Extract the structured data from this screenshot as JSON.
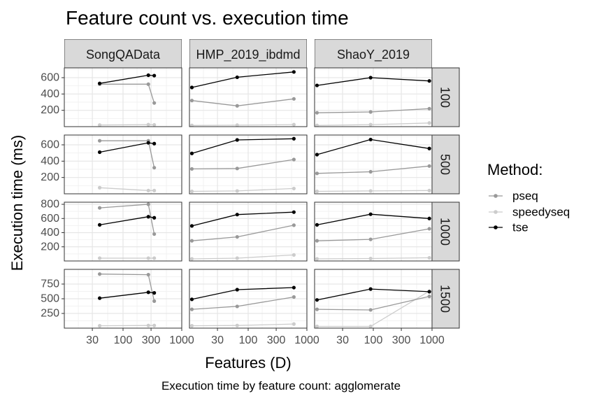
{
  "chart_data": {
    "type": "line",
    "title": "Feature count vs. execution time",
    "caption": "Execution time by feature count: agglomerate",
    "xlabel": "Features (D)",
    "ylabel": "Execution time (ms)",
    "x_scale": "log10",
    "x_ticks": [
      30,
      100,
      300,
      1000
    ],
    "x_tick_labels": [
      "30",
      "100",
      "300",
      "1000"
    ],
    "xlim": [
      10,
      1000
    ],
    "grid": true,
    "legend": {
      "title": "Method:",
      "position": "right",
      "entries": [
        "pseq",
        "speedyseq",
        "tse"
      ]
    },
    "series_colors": {
      "pseq": "#999999",
      "speedyseq": "#cccccc",
      "tse": "#000000"
    },
    "col_facets": [
      "SongQAData",
      "HMP_2019_ibdmd",
      "ShaoY_2019"
    ],
    "row_facets": [
      "100",
      "500",
      "1000",
      "1500"
    ],
    "rows": [
      {
        "facet": "100",
        "ylim": [
          0,
          720
        ],
        "y_ticks": [
          200,
          400,
          600
        ],
        "y_tick_labels": [
          "200",
          "400",
          "600"
        ],
        "panels": [
          {
            "series": [
              {
                "name": "pseq",
                "x": [
                  40,
                  270,
                  340
                ],
                "y": [
                  520,
                  520,
                  290
                ]
              },
              {
                "name": "speedyseq",
                "x": [
                  40,
                  270,
                  340
                ],
                "y": [
                  20,
                  25,
                  22
                ]
              },
              {
                "name": "tse",
                "x": [
                  40,
                  270,
                  340
                ],
                "y": [
                  530,
                  630,
                  625
                ]
              }
            ]
          },
          {
            "series": [
              {
                "name": "pseq",
                "x": [
                  11,
                  65,
                  600
                ],
                "y": [
                  320,
                  255,
                  340
                ]
              },
              {
                "name": "speedyseq",
                "x": [
                  11,
                  65,
                  600
                ],
                "y": [
                  15,
                  18,
                  25
                ]
              },
              {
                "name": "tse",
                "x": [
                  11,
                  65,
                  600
                ],
                "y": [
                  480,
                  605,
                  670
                ]
              }
            ]
          },
          {
            "series": [
              {
                "name": "pseq",
                "x": [
                  11,
                  90,
                  900
                ],
                "y": [
                  170,
                  180,
                  220
                ]
              },
              {
                "name": "speedyseq",
                "x": [
                  11,
                  90,
                  900
                ],
                "y": [
                  15,
                  25,
                  45
                ]
              },
              {
                "name": "tse",
                "x": [
                  11,
                  90,
                  900
                ],
                "y": [
                  505,
                  600,
                  560
                ]
              }
            ]
          }
        ]
      },
      {
        "facet": "500",
        "ylim": [
          0,
          720
        ],
        "y_ticks": [
          200,
          400,
          600
        ],
        "y_tick_labels": [
          "200",
          "400",
          "600"
        ],
        "panels": [
          {
            "series": [
              {
                "name": "pseq",
                "x": [
                  40,
                  270,
                  340
                ],
                "y": [
                  650,
                  650,
                  320
                ]
              },
              {
                "name": "speedyseq",
                "x": [
                  40,
                  270,
                  340
                ],
                "y": [
                  75,
                  40,
                  40
                ]
              },
              {
                "name": "tse",
                "x": [
                  40,
                  270,
                  340
                ],
                "y": [
                  510,
                  625,
                  615
                ]
              }
            ]
          },
          {
            "series": [
              {
                "name": "pseq",
                "x": [
                  11,
                  65,
                  600
                ],
                "y": [
                  305,
                  310,
                  420
                ]
              },
              {
                "name": "speedyseq",
                "x": [
                  11,
                  65,
                  600
                ],
                "y": [
                  30,
                  35,
                  65
                ]
              },
              {
                "name": "tse",
                "x": [
                  11,
                  65,
                  600
                ],
                "y": [
                  495,
                  660,
                  675
                ]
              }
            ]
          },
          {
            "series": [
              {
                "name": "pseq",
                "x": [
                  11,
                  90,
                  900
                ],
                "y": [
                  250,
                  270,
                  340
                ]
              },
              {
                "name": "speedyseq",
                "x": [
                  11,
                  90,
                  900
                ],
                "y": [
                  30,
                  35,
                  40
                ]
              },
              {
                "name": "tse",
                "x": [
                  11,
                  90,
                  900
                ],
                "y": [
                  480,
                  665,
                  555
                ]
              }
            ]
          }
        ]
      },
      {
        "facet": "1000",
        "ylim": [
          0,
          830
        ],
        "y_ticks": [
          200,
          400,
          600,
          800
        ],
        "y_tick_labels": [
          "200",
          "400",
          "600",
          "800"
        ],
        "panels": [
          {
            "series": [
              {
                "name": "pseq",
                "x": [
                  40,
                  270,
                  340
                ],
                "y": [
                  750,
                  800,
                  380
                ]
              },
              {
                "name": "speedyseq",
                "x": [
                  40,
                  270,
                  340
                ],
                "y": [
                  40,
                  40,
                  40
                ]
              },
              {
                "name": "tse",
                "x": [
                  40,
                  270,
                  340
                ],
                "y": [
                  510,
                  625,
                  610
                ]
              }
            ]
          },
          {
            "series": [
              {
                "name": "pseq",
                "x": [
                  11,
                  65,
                  600
                ],
                "y": [
                  285,
                  340,
                  505
                ]
              },
              {
                "name": "speedyseq",
                "x": [
                  11,
                  65,
                  600
                ],
                "y": [
                  30,
                  40,
                  85
                ]
              },
              {
                "name": "tse",
                "x": [
                  11,
                  65,
                  600
                ],
                "y": [
                  495,
                  655,
                  690
                ]
              }
            ]
          },
          {
            "series": [
              {
                "name": "pseq",
                "x": [
                  11,
                  90,
                  900
                ],
                "y": [
                  285,
                  305,
                  455
                ]
              },
              {
                "name": "speedyseq",
                "x": [
                  11,
                  90,
                  900
                ],
                "y": [
                  30,
                  35,
                  45
                ]
              },
              {
                "name": "tse",
                "x": [
                  11,
                  90,
                  900
                ],
                "y": [
                  510,
                  660,
                  600
                ]
              }
            ]
          }
        ]
      },
      {
        "facet": "1500",
        "ylim": [
          0,
          1000
        ],
        "y_ticks": [
          250,
          500,
          750
        ],
        "y_tick_labels": [
          "250",
          "500",
          "750"
        ],
        "panels": [
          {
            "series": [
              {
                "name": "pseq",
                "x": [
                  40,
                  270,
                  340
                ],
                "y": [
                  920,
                  910,
                  460
                ]
              },
              {
                "name": "speedyseq",
                "x": [
                  40,
                  270,
                  340
                ],
                "y": [
                  40,
                  45,
                  45
                ]
              },
              {
                "name": "tse",
                "x": [
                  40,
                  270,
                  340
                ],
                "y": [
                  510,
                  610,
                  600
                ]
              }
            ]
          },
          {
            "series": [
              {
                "name": "pseq",
                "x": [
                  11,
                  65,
                  600
                ],
                "y": [
                  320,
                  370,
                  530
                ]
              },
              {
                "name": "speedyseq",
                "x": [
                  11,
                  65,
                  600
                ],
                "y": [
                  40,
                  45,
                  70
                ]
              },
              {
                "name": "tse",
                "x": [
                  11,
                  65,
                  600
                ],
                "y": [
                  490,
                  655,
                  690
                ]
              }
            ]
          },
          {
            "series": [
              {
                "name": "pseq",
                "x": [
                  11,
                  90,
                  900
                ],
                "y": [
                  320,
                  310,
                  540
                ]
              },
              {
                "name": "speedyseq",
                "x": [
                  11,
                  90,
                  900
                ],
                "y": [
                  30,
                  30,
                  630
                ]
              },
              {
                "name": "tse",
                "x": [
                  11,
                  90,
                  900
                ],
                "y": [
                  480,
                  665,
                  620
                ]
              }
            ]
          }
        ]
      }
    ]
  }
}
